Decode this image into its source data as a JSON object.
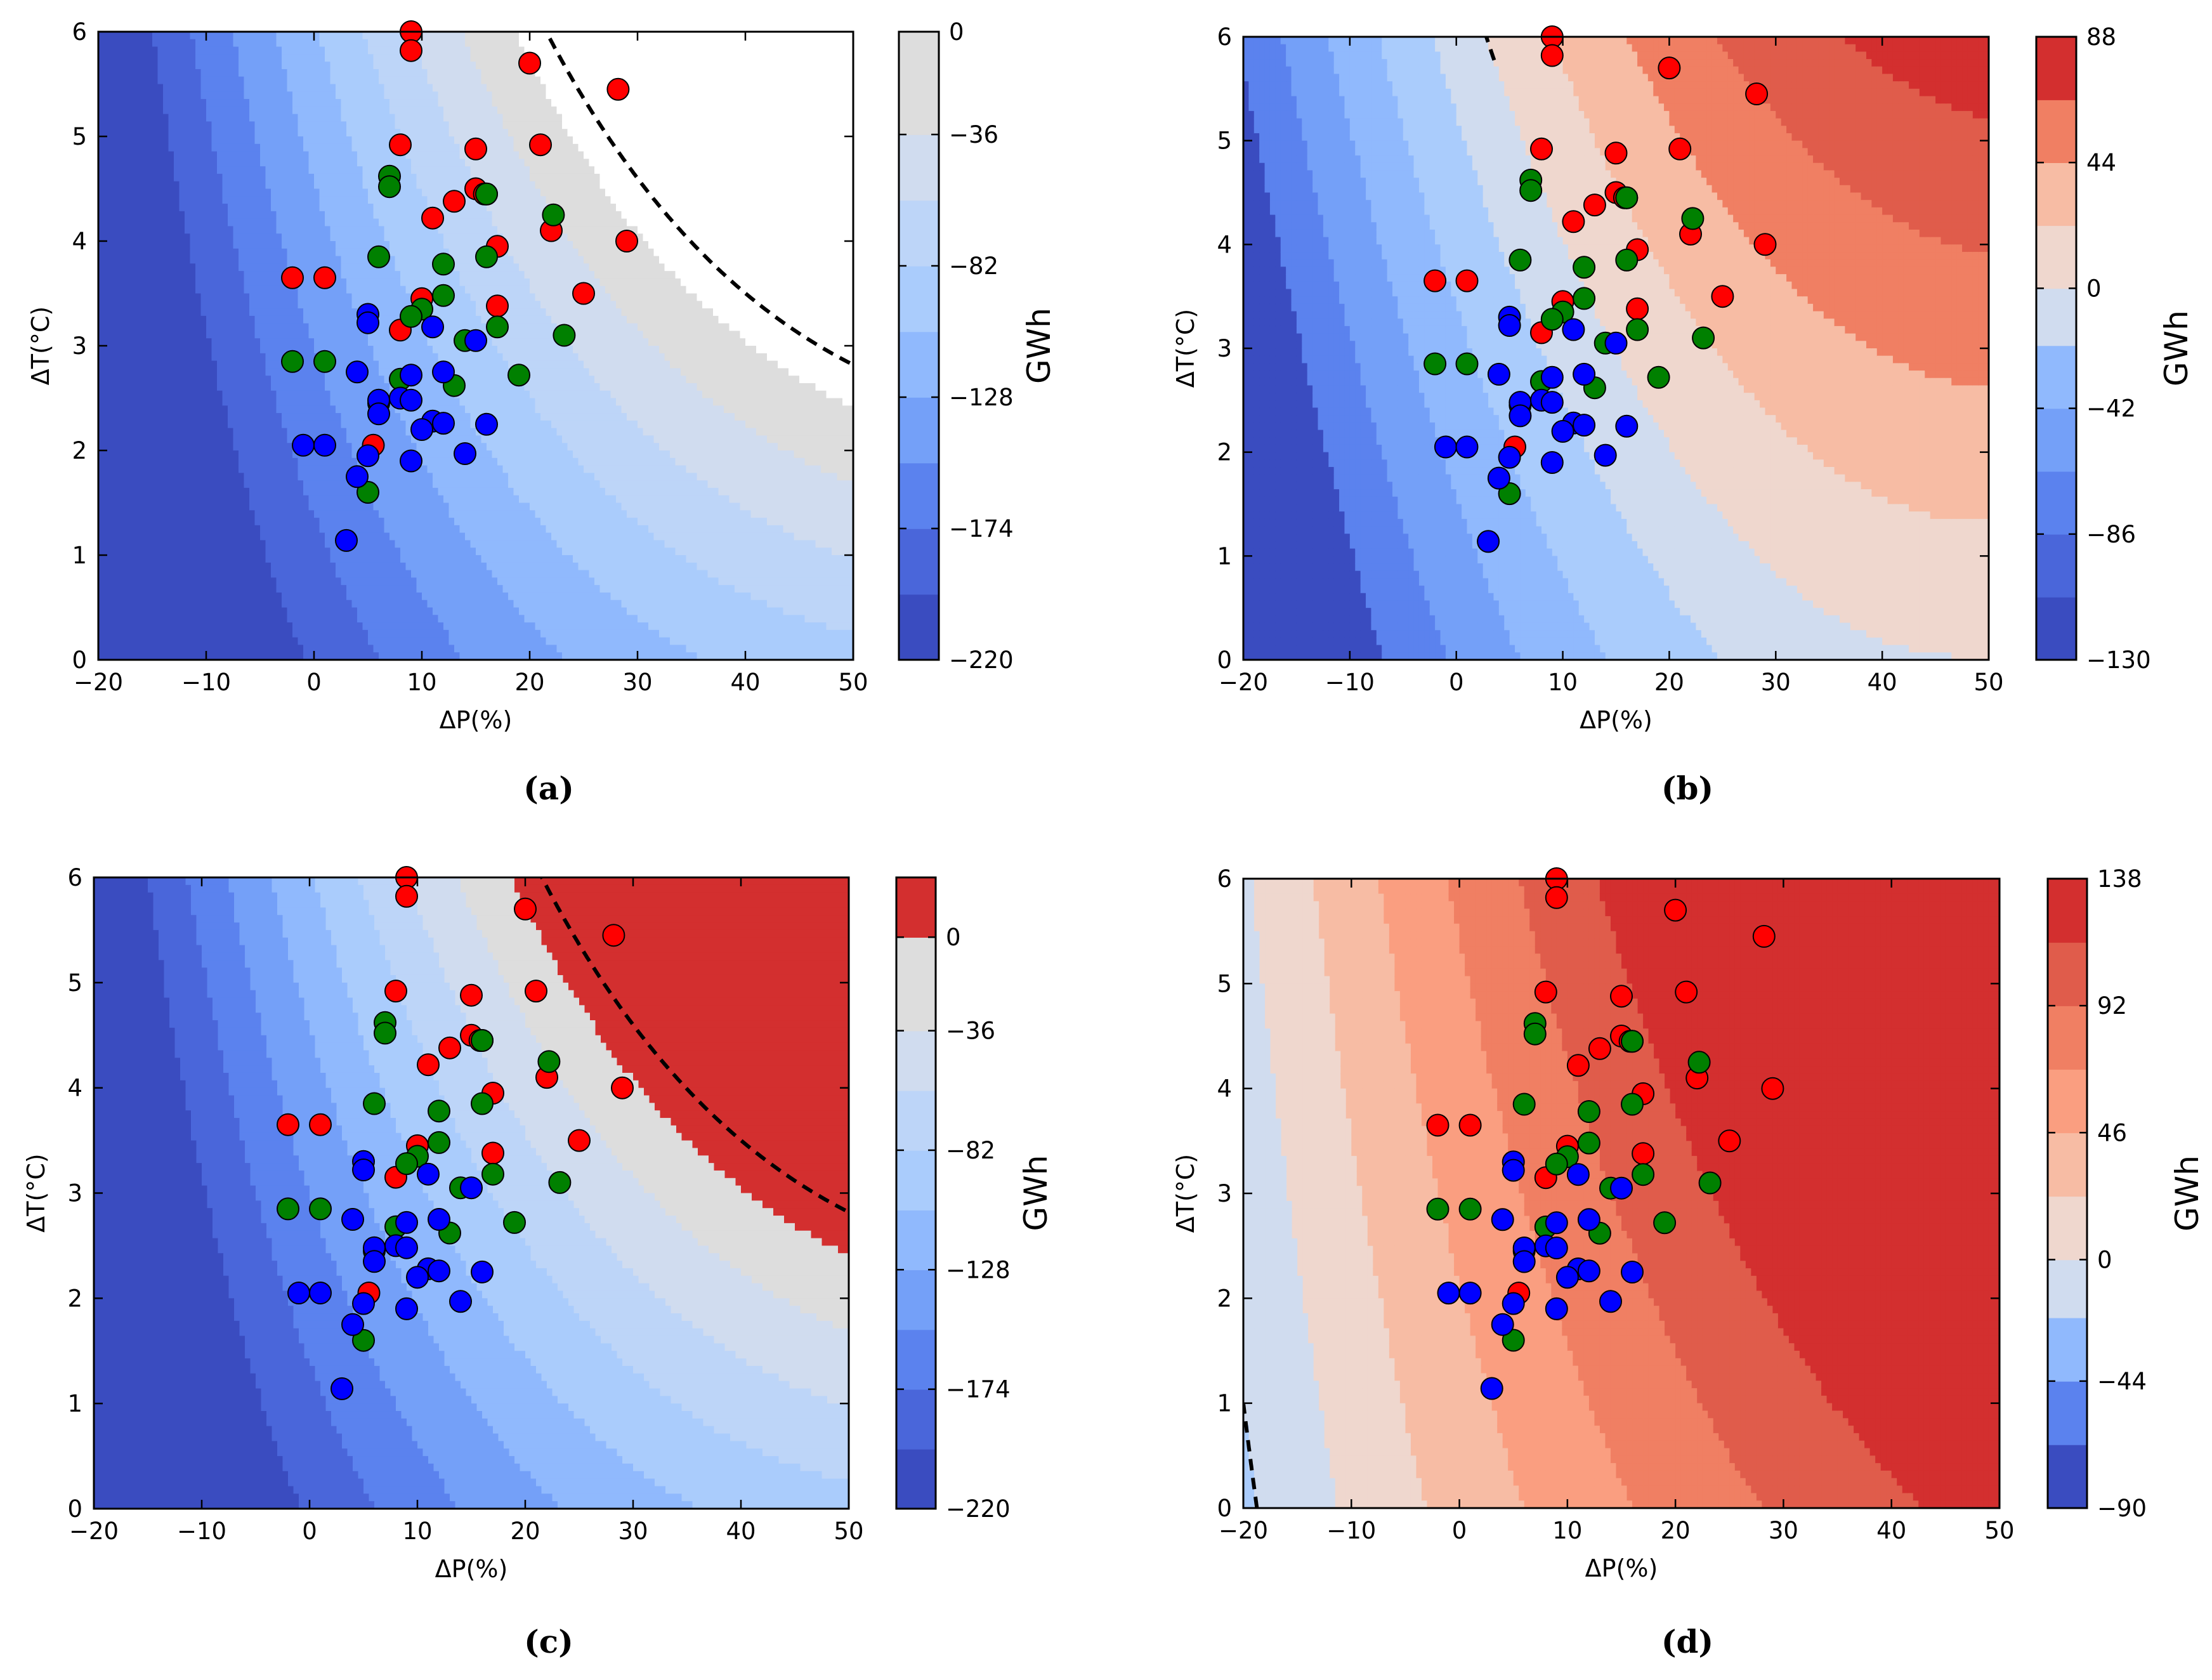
{
  "colors": {
    "blue_palette": [
      "#3a4cc0",
      "#4a66da",
      "#5b82ee",
      "#74a0f8",
      "#90b9fd",
      "#aaccfc",
      "#bdd5f8",
      "#d0dcef",
      "#dddddd"
    ],
    "red_palette": [
      "#efd7ce",
      "#f7bca4",
      "#fa9e80",
      "#f07f63",
      "#e05c4b",
      "#c73c37"
    ],
    "dot_red": "#ff0000",
    "dot_green": "#008000",
    "dot_blue": "#0000ff",
    "dashed_line": "#000000"
  },
  "points": {
    "red": [
      [
        9,
        6
      ],
      [
        9,
        5.82
      ],
      [
        20,
        5.7
      ],
      [
        28.2,
        5.45
      ],
      [
        8,
        4.92
      ],
      [
        15,
        4.88
      ],
      [
        21,
        4.92
      ],
      [
        15,
        4.5
      ],
      [
        15.8,
        4.45
      ],
      [
        16,
        4.45
      ],
      [
        13,
        4.38
      ],
      [
        11,
        4.22
      ],
      [
        22,
        4.1
      ],
      [
        17,
        3.95
      ],
      [
        29,
        4
      ],
      [
        -2,
        3.65
      ],
      [
        1,
        3.65
      ],
      [
        10,
        3.45
      ],
      [
        17,
        3.38
      ],
      [
        25,
        3.5
      ],
      [
        8,
        3.15
      ],
      [
        5.5,
        2.05
      ]
    ],
    "green": [
      [
        7,
        4.62
      ],
      [
        7,
        4.52
      ],
      [
        22.2,
        4.25
      ],
      [
        16,
        4.45
      ],
      [
        6,
        3.85
      ],
      [
        12,
        3.78
      ],
      [
        16,
        3.85
      ],
      [
        12,
        3.48
      ],
      [
        10,
        3.35
      ],
      [
        9,
        3.28
      ],
      [
        17,
        3.18
      ],
      [
        14,
        3.05
      ],
      [
        23.2,
        3.1
      ],
      [
        -2,
        2.85
      ],
      [
        1,
        2.85
      ],
      [
        8,
        2.68
      ],
      [
        13,
        2.62
      ],
      [
        19,
        2.72
      ],
      [
        6,
        2.45
      ],
      [
        5,
        1.6
      ]
    ],
    "blue": [
      [
        5,
        3.3
      ],
      [
        5,
        3.22
      ],
      [
        11,
        3.18
      ],
      [
        15,
        3.05
      ],
      [
        4,
        2.75
      ],
      [
        9,
        2.72
      ],
      [
        12,
        2.75
      ],
      [
        6,
        2.48
      ],
      [
        8,
        2.5
      ],
      [
        9,
        2.48
      ],
      [
        6,
        2.35
      ],
      [
        11,
        2.28
      ],
      [
        12,
        2.26
      ],
      [
        16,
        2.25
      ],
      [
        10,
        2.2
      ],
      [
        -1,
        2.05
      ],
      [
        1,
        2.05
      ],
      [
        5,
        1.95
      ],
      [
        4,
        1.75
      ],
      [
        9,
        1.9
      ],
      [
        14,
        1.97
      ],
      [
        3,
        1.14
      ]
    ]
  },
  "chart_data": [
    {
      "type": "contour_scatter",
      "panel": "(a)",
      "caption": "(a)",
      "xlabel": "ΔP(%)",
      "ylabel": "ΔT(°C)",
      "xlim": [
        -20,
        50
      ],
      "ylim": [
        0,
        6
      ],
      "xticks": [
        "−20",
        "−10",
        "0",
        "10",
        "20",
        "30",
        "40",
        "50"
      ],
      "yticks": [
        "0",
        "1",
        "2",
        "3",
        "4",
        "5",
        "6"
      ],
      "field": {
        "base": -275,
        "slopeP": 4.6,
        "slopeT": 7.5,
        "cross": 0.35,
        "curveP": -0.028,
        "curveT": 0
      },
      "levels": [
        -220,
        -197,
        -174,
        -151,
        -128,
        -105,
        -82,
        -59,
        -36,
        -13,
        0
      ],
      "band_colors": [
        "#3a4cc0",
        "#4a66da",
        "#5b82ee",
        "#74a0f8",
        "#90b9fd",
        "#aaccfc",
        "#bdd5f8",
        "#d0dcef",
        "#dddddd",
        "#ffffff"
      ],
      "zero_contour": true,
      "colorbar": {
        "label": "GWh",
        "range": [
          -220,
          0
        ],
        "ticks": [
          "0",
          "−36",
          "−82",
          "−128",
          "−174",
          "−220"
        ],
        "tick_values": [
          0,
          -36,
          -82,
          -128,
          -174,
          -220
        ],
        "bands": [
          -220,
          -197,
          -174,
          -151,
          -128,
          -105,
          -82,
          -59,
          -36,
          -13,
          0
        ],
        "band_colors": [
          "#3a4cc0",
          "#4a66da",
          "#5b82ee",
          "#74a0f8",
          "#90b9fd",
          "#aaccfc",
          "#bdd5f8",
          "#d0dcef",
          "#dddddd",
          "#dddddd"
        ]
      }
    },
    {
      "type": "contour_scatter",
      "panel": "(b)",
      "caption": "(b)",
      "xlabel": "ΔP(%)",
      "ylabel": "ΔT(°C)",
      "xlim": [
        -20,
        50
      ],
      "ylim": [
        0,
        6
      ],
      "xticks": [
        "−20",
        "−10",
        "0",
        "10",
        "20",
        "30",
        "40",
        "50"
      ],
      "yticks": [
        "0",
        "1",
        "2",
        "3",
        "4",
        "5",
        "6"
      ],
      "field": {
        "base": -165,
        "slopeP": 4.8,
        "slopeT": 10,
        "cross": 0.1,
        "curveP": -0.035,
        "curveT": 0
      },
      "levels": [
        -130,
        -108,
        -86,
        -64,
        -42,
        -20,
        0,
        22,
        44,
        66,
        88
      ],
      "band_colors": [
        "#3a4cc0",
        "#5b82ee",
        "#74a0f8",
        "#90b9fd",
        "#aaccfc",
        "#d0dcef",
        "#efd7ce",
        "#f7bca4",
        "#f07f63",
        "#e05c4b",
        "#d32f2f"
      ],
      "zero_contour": true,
      "colorbar": {
        "label": "GWh",
        "range": [
          -130,
          88
        ],
        "ticks": [
          "88",
          "44",
          "0",
          "−42",
          "−86",
          "−130"
        ],
        "tick_values": [
          88,
          44,
          0,
          -42,
          -86,
          -130
        ],
        "bands": [
          -130,
          -108,
          -86,
          -64,
          -42,
          -20,
          0,
          22,
          44,
          66,
          88
        ],
        "band_colors": [
          "#3a4cc0",
          "#4a66da",
          "#5b82ee",
          "#74a0f8",
          "#90b9fd",
          "#d0dcef",
          "#efd7ce",
          "#f7bca4",
          "#f07f63",
          "#d32f2f"
        ]
      }
    },
    {
      "type": "contour_scatter",
      "panel": "(c)",
      "caption": "(c)",
      "xlabel": "ΔP(%)",
      "ylabel": "ΔT(°C)",
      "xlim": [
        -20,
        50
      ],
      "ylim": [
        0,
        6
      ],
      "xticks": [
        "−20",
        "−10",
        "0",
        "10",
        "20",
        "30",
        "40",
        "50"
      ],
      "yticks": [
        "0",
        "1",
        "2",
        "3",
        "4",
        "5",
        "6"
      ],
      "field": {
        "base": -275,
        "slopeP": 4.6,
        "slopeT": 7.5,
        "cross": 0.35,
        "curveP": -0.028,
        "curveT": 0
      },
      "levels": [
        -220,
        -197,
        -174,
        -151,
        -128,
        -105,
        -82,
        -59,
        -36,
        -13,
        0
      ],
      "band_colors": [
        "#3a4cc0",
        "#4a66da",
        "#5b82ee",
        "#74a0f8",
        "#90b9fd",
        "#aaccfc",
        "#bdd5f8",
        "#d0dcef",
        "#dddddd",
        "#d32f2f"
      ],
      "zero_contour": true,
      "colorbar": {
        "label": "GWh",
        "range": [
          -220,
          23
        ],
        "ticks": [
          "0",
          "−36",
          "−82",
          "−128",
          "−174",
          "−220"
        ],
        "tick_values": [
          0,
          -36,
          -82,
          -128,
          -174,
          -220
        ],
        "bands": [
          -220,
          -197,
          -174,
          -151,
          -128,
          -105,
          -82,
          -59,
          -36,
          -13,
          0,
          23
        ],
        "band_colors": [
          "#3a4cc0",
          "#4a66da",
          "#5b82ee",
          "#74a0f8",
          "#90b9fd",
          "#aaccfc",
          "#bdd5f8",
          "#d0dcef",
          "#dddddd",
          "#dddddd",
          "#d32f2f"
        ]
      }
    },
    {
      "type": "contour_scatter",
      "panel": "(d)",
      "caption": "(d)",
      "xlabel": "ΔP(%)",
      "ylabel": "ΔT(°C)",
      "xlim": [
        -20,
        50
      ],
      "ylim": [
        0,
        6
      ],
      "xticks": [
        "−20",
        "−10",
        "0",
        "10",
        "20",
        "30",
        "40",
        "50"
      ],
      "yticks": [
        "0",
        "1",
        "2",
        "3",
        "4",
        "5",
        "6"
      ],
      "field": {
        "base": -4,
        "slopeP": 3.2,
        "slopeT": 4,
        "cross": 0.15,
        "curveP": -0.015,
        "curveT": 0
      },
      "levels": [
        -90,
        -67,
        -44,
        -21,
        0,
        23,
        46,
        69,
        92,
        115,
        138
      ],
      "band_colors": [
        "#3a4cc0",
        "#5b82ee",
        "#90b9fd",
        "#aaccfc",
        "#d0dcef",
        "#efd7ce",
        "#f7bca4",
        "#fa9e80",
        "#f07f63",
        "#e05c4b",
        "#d32f2f"
      ],
      "zero_contour": true,
      "colorbar": {
        "label": "GWh",
        "range": [
          -90,
          138
        ],
        "ticks": [
          "138",
          "92",
          "46",
          "0",
          "−44",
          "−90"
        ],
        "tick_values": [
          138,
          92,
          46,
          0,
          -44,
          -90
        ],
        "bands": [
          -90,
          -67,
          -44,
          -21,
          0,
          23,
          46,
          69,
          92,
          115,
          138
        ],
        "band_colors": [
          "#3a4cc0",
          "#5b82ee",
          "#90b9fd",
          "#d0dcef",
          "#efd7ce",
          "#f7bca4",
          "#fa9e80",
          "#f07f63",
          "#e05c4b",
          "#d32f2f"
        ]
      }
    }
  ]
}
